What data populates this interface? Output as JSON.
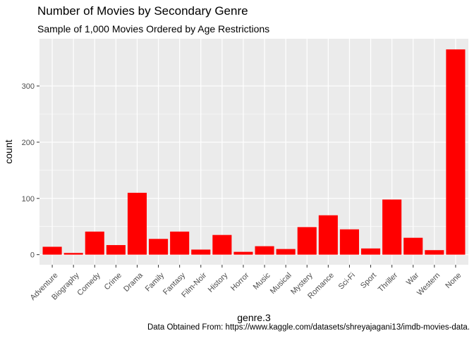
{
  "chart_data": {
    "type": "bar",
    "title": "Number of Movies by Secondary Genre",
    "subtitle": "Sample of 1,000 Movies Ordered by Age Restrictions",
    "caption": "Data Obtained From: https://www.kaggle.com/datasets/shreyajagani13/imdb-movies-data.",
    "xlabel": "genre.3",
    "ylabel": "count",
    "categories": [
      "Adventure",
      "Biography",
      "Comedy",
      "Crime",
      "Drama",
      "Family",
      "Fantasy",
      "Film-Noir",
      "History",
      "Horror",
      "Music",
      "Musical",
      "Mystery",
      "Romance",
      "Sci-Fi",
      "Sport",
      "Thriller",
      "War",
      "Western",
      "None"
    ],
    "values": [
      14,
      3,
      41,
      17,
      110,
      28,
      41,
      9,
      35,
      5,
      15,
      10,
      49,
      70,
      45,
      11,
      98,
      30,
      8,
      365
    ],
    "ylim": [
      -18,
      384
    ],
    "yticks": [
      0,
      100,
      200,
      300
    ],
    "grid": true,
    "colors": {
      "bar": "#ff0000",
      "panel": "#ebebeb",
      "grid": "#ffffff"
    }
  }
}
